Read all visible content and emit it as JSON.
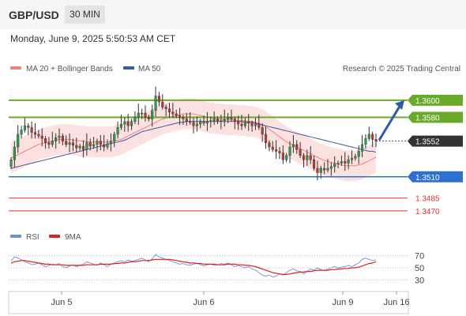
{
  "header": {
    "pair": "GBP/USD",
    "timeframe": "30 MIN"
  },
  "timestamp": "Monday, June 9, 2025 5:50:53 AM CET",
  "legend": {
    "ma20": {
      "label": "MA 20 + Bollinger Bands",
      "color": "#f08080"
    },
    "ma50": {
      "label": "MA 50",
      "color": "#3a5a9a"
    }
  },
  "copyright": "Research © 2025 Trading Central",
  "rsi_legend": {
    "rsi": {
      "label": "RSI",
      "color": "#6f8fd6"
    },
    "ma9": {
      "label": "9MA",
      "color": "#dd2222"
    }
  },
  "chart_data": [
    {
      "type": "candlestick",
      "ylim": [
        1.3455,
        1.3625
      ],
      "price_levels": [
        {
          "value": 1.36,
          "label": "1.3600",
          "kind": "resistance",
          "color": "#6aaa2a"
        },
        {
          "value": 1.358,
          "label": "1.3580",
          "kind": "resistance",
          "color": "#6aaa2a"
        },
        {
          "value": 1.3552,
          "label": "1.3552",
          "kind": "current",
          "color": "#333333"
        },
        {
          "value": 1.351,
          "label": "1.3510",
          "kind": "support",
          "color": "#2f6fd0"
        },
        {
          "value": 1.3485,
          "label": "1.3485",
          "kind": "target",
          "color": "#dd3333"
        },
        {
          "value": 1.347,
          "label": "1.3470",
          "kind": "target",
          "color": "#dd3333"
        }
      ],
      "x_ticks": [
        "Jun 5",
        "Jun 6",
        "Jun 9",
        "Jun 16"
      ],
      "closes": [
        1.353,
        1.3545,
        1.356,
        1.3565,
        1.357,
        1.3568,
        1.3562,
        1.356,
        1.3558,
        1.3555,
        1.355,
        1.3548,
        1.3552,
        1.3556,
        1.3558,
        1.3552,
        1.3548,
        1.355,
        1.3547,
        1.3544,
        1.3546,
        1.3542,
        1.355,
        1.3546,
        1.3548,
        1.3552,
        1.3548,
        1.3545,
        1.3549,
        1.3552,
        1.356,
        1.3568,
        1.3572,
        1.3575,
        1.357,
        1.3575,
        1.358,
        1.3585,
        1.3585,
        1.358,
        1.3578,
        1.3588,
        1.3605,
        1.3598,
        1.3592,
        1.359,
        1.3586,
        1.3584,
        1.3582,
        1.358,
        1.3578,
        1.3575,
        1.3574,
        1.357,
        1.3572,
        1.3575,
        1.3573,
        1.3575,
        1.3576,
        1.3578,
        1.3575,
        1.3576,
        1.3578,
        1.358,
        1.3578,
        1.3575,
        1.3572,
        1.357,
        1.3575,
        1.3573,
        1.357,
        1.3572,
        1.3568,
        1.356,
        1.355,
        1.3545,
        1.3542,
        1.354,
        1.3538,
        1.353,
        1.3535,
        1.3545,
        1.3548,
        1.3542,
        1.3535,
        1.353,
        1.3535,
        1.353,
        1.352,
        1.3515,
        1.352,
        1.3518,
        1.352,
        1.3522,
        1.3525,
        1.3526,
        1.3528,
        1.3526,
        1.353,
        1.3532,
        1.3534,
        1.354,
        1.3548,
        1.3555,
        1.356,
        1.3554,
        1.3552
      ],
      "ma20": [
        1.3532,
        1.3534,
        1.3536,
        1.3538,
        1.354,
        1.3542,
        1.3544,
        1.3546,
        1.3548,
        1.3549,
        1.355,
        1.3551,
        1.3552,
        1.3553,
        1.3554,
        1.3554,
        1.3554,
        1.3554,
        1.3553,
        1.3553,
        1.3552,
        1.3552,
        1.3551,
        1.3551,
        1.3551,
        1.3551,
        1.3551,
        1.3551,
        1.3551,
        1.3551,
        1.3552,
        1.3553,
        1.3554,
        1.3556,
        1.3558,
        1.356,
        1.3562,
        1.3564,
        1.3566,
        1.3568,
        1.357,
        1.3572,
        1.3574,
        1.3576,
        1.3578,
        1.3579,
        1.358,
        1.3581,
        1.3582,
        1.3583,
        1.3584,
        1.3584,
        1.3584,
        1.3584,
        1.3583,
        1.3582,
        1.3581,
        1.358,
        1.3579,
        1.3579,
        1.3578,
        1.3578,
        1.3577,
        1.3577,
        1.3577,
        1.3577,
        1.3576,
        1.3576,
        1.3576,
        1.3575,
        1.3575,
        1.3574,
        1.3573,
        1.3571,
        1.3569,
        1.3566,
        1.3563,
        1.356,
        1.3557,
        1.3554,
        1.3551,
        1.3549,
        1.3547,
        1.3545,
        1.3543,
        1.3541,
        1.3539,
        1.3537,
        1.3535,
        1.3533,
        1.3531,
        1.3529,
        1.3528,
        1.3527,
        1.3526,
        1.3525,
        1.3524,
        1.3523,
        1.3523,
        1.3523,
        1.3523,
        1.3524,
        1.3525,
        1.3527,
        1.3529,
        1.3531,
        1.3533
      ],
      "ma50": [
        1.352,
        1.3521,
        1.3522,
        1.3523,
        1.3524,
        1.3525,
        1.3526,
        1.3527,
        1.3528,
        1.3529,
        1.353,
        1.3531,
        1.3532,
        1.3533,
        1.3534,
        1.3535,
        1.3536,
        1.3537,
        1.3538,
        1.3539,
        1.354,
        1.3541,
        1.3542,
        1.3543,
        1.3544,
        1.3545,
        1.3546,
        1.3547,
        1.3548,
        1.3549,
        1.355,
        1.3551,
        1.3552,
        1.3553,
        1.3555,
        1.3557,
        1.3559,
        1.3561,
        1.3563,
        1.3564,
        1.3565,
        1.3566,
        1.3567,
        1.3568,
        1.3569,
        1.357,
        1.3571,
        1.3572,
        1.3573,
        1.3574,
        1.3574,
        1.3575,
        1.3575,
        1.3575,
        1.3575,
        1.3575,
        1.3575,
        1.3575,
        1.3575,
        1.3575,
        1.3575,
        1.3575,
        1.3575,
        1.3575,
        1.3575,
        1.3575,
        1.3575,
        1.3575,
        1.3574,
        1.3574,
        1.3574,
        1.3573,
        1.3572,
        1.3571,
        1.357,
        1.3569,
        1.3568,
        1.3567,
        1.3566,
        1.3565,
        1.3564,
        1.3563,
        1.3562,
        1.3561,
        1.356,
        1.3559,
        1.3558,
        1.3557,
        1.3556,
        1.3555,
        1.3554,
        1.3553,
        1.3552,
        1.3551,
        1.355,
        1.3549,
        1.3548,
        1.3547,
        1.3546,
        1.3545,
        1.3544,
        1.3543,
        1.3542,
        1.3541,
        1.354,
        1.354,
        1.3539
      ],
      "bb_width": 0.0018,
      "forecast_arrow": {
        "from": 1.3553,
        "to": 1.36
      }
    },
    {
      "type": "line",
      "ylim": [
        20,
        80
      ],
      "y_ticks": [
        70,
        50,
        30
      ],
      "rsi": [
        62,
        68,
        66,
        63,
        60,
        58,
        55,
        56,
        58,
        55,
        52,
        54,
        56,
        55,
        57,
        52,
        50,
        53,
        55,
        52,
        54,
        56,
        60,
        58,
        56,
        54,
        58,
        55,
        52,
        56,
        58,
        60,
        62,
        60,
        63,
        61,
        62,
        64,
        66,
        63,
        60,
        65,
        72,
        68,
        66,
        64,
        62,
        60,
        58,
        56,
        57,
        55,
        54,
        56,
        58,
        55,
        53,
        55,
        56,
        54,
        55,
        57,
        56,
        58,
        55,
        52,
        54,
        52,
        50,
        52,
        48,
        46,
        42,
        38,
        36,
        38,
        35,
        36,
        40,
        38,
        42,
        46,
        48,
        45,
        44,
        40,
        44,
        48,
        46,
        50,
        47,
        45,
        48,
        50,
        52,
        50,
        51,
        52,
        54,
        52,
        55,
        58,
        64,
        66,
        64,
        62,
        63
      ],
      "ma9": [
        58,
        60,
        61,
        62,
        62,
        61,
        60,
        59,
        58,
        57,
        56,
        56,
        55,
        55,
        55,
        55,
        54,
        54,
        54,
        54,
        54,
        54,
        55,
        55,
        55,
        55,
        56,
        56,
        56,
        56,
        57,
        57,
        58,
        58,
        59,
        60,
        60,
        61,
        62,
        62,
        62,
        63,
        64,
        64,
        64,
        64,
        64,
        63,
        62,
        61,
        60,
        59,
        58,
        58,
        57,
        57,
        56,
        56,
        56,
        56,
        55,
        55,
        55,
        56,
        56,
        56,
        55,
        55,
        54,
        54,
        53,
        52,
        50,
        48,
        46,
        44,
        42,
        41,
        40,
        39,
        39,
        40,
        41,
        42,
        43,
        43,
        44,
        44,
        45,
        46,
        46,
        46,
        46,
        47,
        47,
        48,
        48,
        49,
        49,
        50,
        50,
        51,
        53,
        55,
        57,
        58,
        60
      ]
    }
  ]
}
